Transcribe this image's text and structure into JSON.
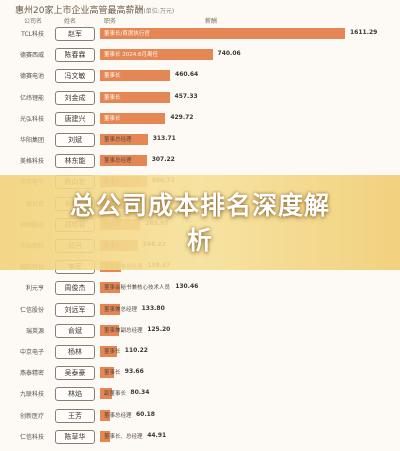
{
  "header": {
    "title": "惠州20家上市企业高管最高薪酬",
    "unit": "(单位:万元)",
    "col_company": "公司名",
    "col_name": "姓名",
    "col_title": "职务",
    "col_salary": "薪酬"
  },
  "overlay": {
    "headline_line1": "总公司成本排名深度解",
    "headline_line2": "析"
  },
  "colors": {
    "bar": "#e58755",
    "overlay": "#f4d985",
    "background": "#fdfaf5"
  },
  "chart_data": {
    "type": "bar",
    "xmax": 1611.29,
    "rows": [
      {
        "company": "TCL科技",
        "person": "赵军",
        "role": "董事长/首席执行官",
        "value": 1611.29,
        "value_label": "1611.29"
      },
      {
        "company": "德赛西威",
        "person": "陈春霖",
        "role": "董事长 2024.6月离任",
        "value": 740.06,
        "value_label": "740.06"
      },
      {
        "company": "德赛电池",
        "person": "冯文敏",
        "role": "董事长",
        "value": 460.64,
        "value_label": "460.64"
      },
      {
        "company": "亿纬锂能",
        "person": "刘金成",
        "role": "董事长",
        "value": 457.33,
        "value_label": "457.33"
      },
      {
        "company": "光弘科技",
        "person": "唐建兴",
        "role": "董事长",
        "value": 429.72,
        "value_label": "429.72"
      },
      {
        "company": "华阳集团",
        "person": "刘斌",
        "role": "董事总经理",
        "value": 313.71,
        "value_label": "313.71"
      },
      {
        "company": "美格科技",
        "person": "林东能",
        "role": "董事总经理",
        "value": 307.22,
        "value_label": "307.22"
      },
      {
        "company": "中京电子",
        "person": "杨向宏",
        "role": "董事长",
        "value": 306.72,
        "value_label": "306.72"
      },
      {
        "company": "硕贝德",
        "person": "朱坤华",
        "role": "董事长",
        "value": 303.8,
        "value_label": "303.80"
      },
      {
        "company": "科翔股份",
        "person": "郑晓蓉",
        "role": "董事长",
        "value": 265.67,
        "value_label": "265.67"
      },
      {
        "company": "华阳精机",
        "person": "邱丹",
        "role": "董事长",
        "value": 248.22,
        "value_label": "248.22"
      },
      {
        "company": "锐石科技",
        "person": "李军",
        "role": "董事长兼总经理",
        "value": 138.37,
        "value_label": "138.37"
      },
      {
        "company": "利元亨",
        "person": "周俊杰",
        "role": "董事会秘书兼核心技术人员",
        "value": 130.46,
        "value_label": "130.46"
      },
      {
        "company": "仁信股份",
        "person": "刘远军",
        "role": "董事兼总经理",
        "value": 133.8,
        "value_label": "133.80"
      },
      {
        "company": "瑞英源",
        "person": "俞斌",
        "role": "董事兼副总经理",
        "value": 125.2,
        "value_label": "125.20"
      },
      {
        "company": "中京电子",
        "person": "杨林",
        "role": "董事长",
        "value": 110.22,
        "value_label": "110.22"
      },
      {
        "company": "燕泰精密",
        "person": "吴泰豪",
        "role": "董事长",
        "value": 93.66,
        "value_label": "93.66"
      },
      {
        "company": "九联科技",
        "person": "林焰",
        "role": "副董事长",
        "value": 80.34,
        "value_label": "80.34"
      },
      {
        "company": "创新医疗",
        "person": "王芳",
        "role": "董事总经理",
        "value": 60.18,
        "value_label": "60.18"
      },
      {
        "company": "仁信科技",
        "person": "陈草华",
        "role": "董事长、总经理",
        "value": 44.91,
        "value_label": "44.91"
      }
    ]
  }
}
